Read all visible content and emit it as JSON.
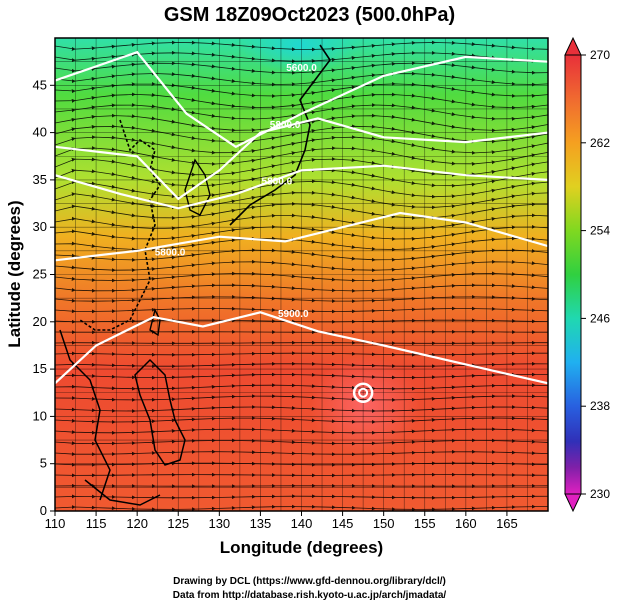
{
  "title": "GSM 18Z09Oct2023 (500.0hPa)",
  "xaxis": {
    "label": "Longitude (degrees)",
    "ticks": [
      "110",
      "115",
      "120",
      "125",
      "130",
      "135",
      "140",
      "145",
      "150",
      "155",
      "160",
      "165"
    ]
  },
  "yaxis": {
    "label": "Latitude  (degrees)",
    "ticks": [
      "0",
      "5",
      "10",
      "15",
      "20",
      "25",
      "30",
      "35",
      "40",
      "45"
    ]
  },
  "colorbar": {
    "ticks": [
      "270",
      "262",
      "254",
      "246",
      "238",
      "230"
    ],
    "colors": [
      "#e8303a",
      "#f06a30",
      "#f5a020",
      "#e8d020",
      "#a8e020",
      "#40d030",
      "#20d8a0",
      "#20b8f0",
      "#2070e0",
      "#3030c0",
      "#7020a0",
      "#d020c0"
    ]
  },
  "contour_labels": [
    "5600.0",
    "5800.0",
    "5800.0",
    "5800.0",
    "5900.0"
  ],
  "credits": {
    "line1": "Drawing by DCL (https://www.gfd-dennou.org/library/dcl/)",
    "line2": "Data from http://database.rish.kyoto-u.ac.jp/arch/jmadata/"
  },
  "chart_data": {
    "type": "heatmap",
    "title": "GSM 18Z09Oct2023 (500.0hPa)",
    "xlabel": "Longitude (degrees)",
    "ylabel": "Latitude  (degrees)",
    "xlim": [
      110,
      170
    ],
    "ylim": [
      0,
      50
    ],
    "colorbar_range": [
      230,
      270
    ],
    "contours": [
      {
        "label": "5600.0",
        "lon": [
          110,
          120,
          126,
          132,
          140,
          150,
          160,
          170
        ],
        "lat": [
          45.5,
          48.5,
          42,
          38.5,
          42,
          46,
          48,
          47.5
        ]
      },
      {
        "label": "5800.0",
        "lon": [
          110,
          120,
          125,
          130,
          135,
          142,
          150,
          160,
          170
        ],
        "lat": [
          38.5,
          37.5,
          33,
          36,
          40,
          41.5,
          39.5,
          39,
          40
        ]
      },
      {
        "label": "5800.0",
        "lon": [
          110,
          118,
          125,
          132,
          140,
          150,
          160,
          170
        ],
        "lat": [
          35.5,
          33.5,
          32,
          33.5,
          36,
          36.5,
          35.5,
          35
        ]
      },
      {
        "label": "5800.0",
        "lon": [
          110,
          120,
          130,
          138,
          145,
          152,
          160,
          170
        ],
        "lat": [
          26.5,
          27.5,
          29,
          28.5,
          30,
          31.5,
          30.5,
          28
        ]
      },
      {
        "label": "5900.0",
        "lon": [
          110,
          115,
          122,
          128,
          135,
          142,
          150,
          160,
          170
        ],
        "lat": [
          13.5,
          17.5,
          20.5,
          19.5,
          21,
          19,
          17.5,
          15.5,
          13.5
        ]
      }
    ],
    "typhoon_center": {
      "lon": 147.5,
      "lat": 12.5
    }
  }
}
